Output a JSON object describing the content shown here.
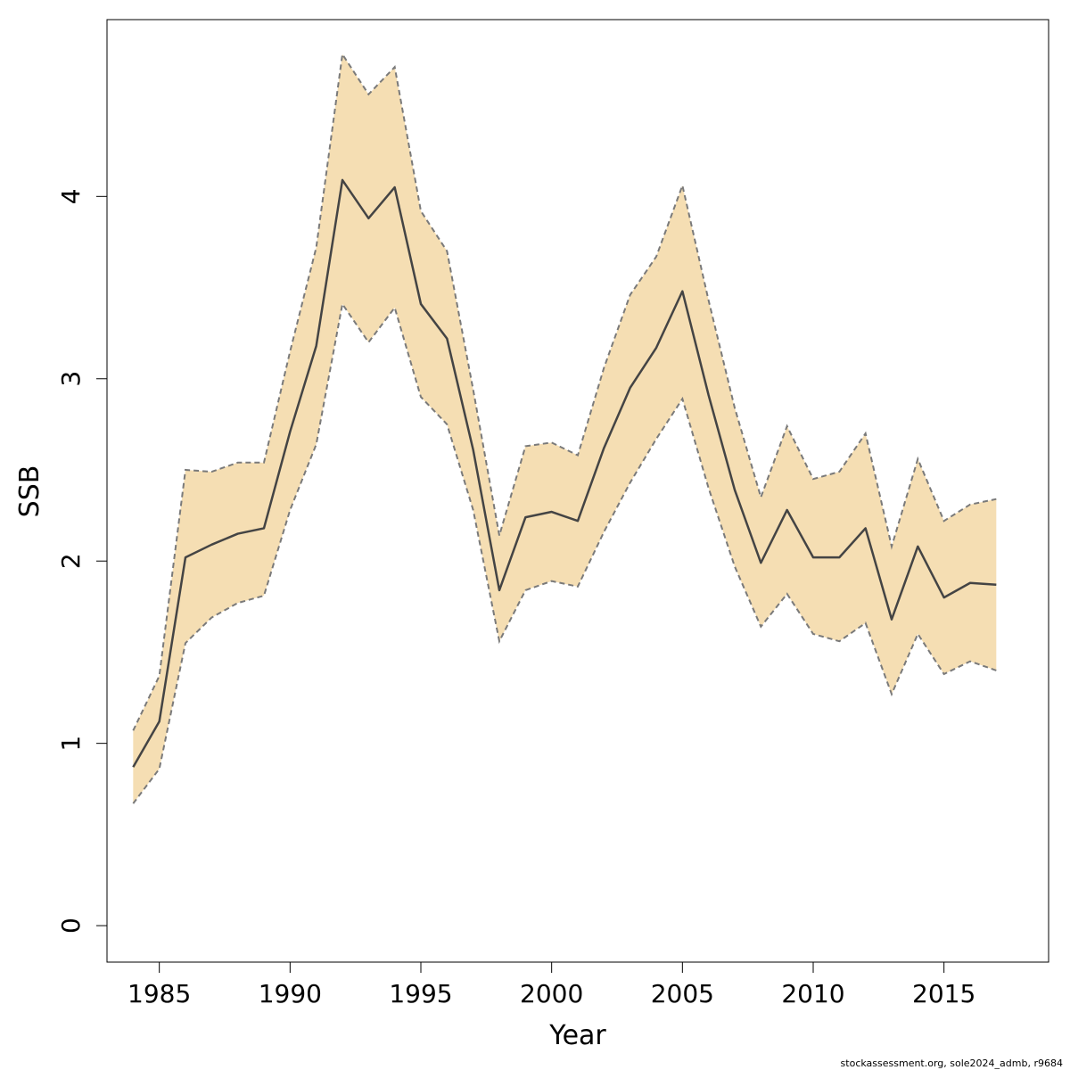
{
  "chart_data": {
    "type": "line",
    "xlabel": "Year",
    "ylabel": "SSB",
    "xlim": [
      1983,
      2019
    ],
    "ylim": [
      -0.2,
      4.97
    ],
    "x_ticks": [
      1985,
      1990,
      1995,
      2000,
      2005,
      2010,
      2015
    ],
    "y_ticks": [
      0,
      1,
      2,
      3,
      4
    ],
    "grid": false,
    "legend": "none",
    "colors": {
      "band_fill": "#F5DEB3",
      "band_edge": "#7a7a7a",
      "line": "#444444",
      "frame": "#000000"
    },
    "x": [
      1984,
      1985,
      1986,
      1987,
      1988,
      1989,
      1990,
      1991,
      1992,
      1993,
      1994,
      1995,
      1996,
      1997,
      1998,
      1999,
      2000,
      2001,
      2002,
      2003,
      2004,
      2005,
      2006,
      2007,
      2008,
      2009,
      2010,
      2011,
      2012,
      2013,
      2014,
      2015,
      2016,
      2017
    ],
    "series": [
      {
        "name": "",
        "role": "estimate",
        "values": [
          0.87,
          1.12,
          2.02,
          2.09,
          2.15,
          2.18,
          2.71,
          3.18,
          4.09,
          3.88,
          4.05,
          3.41,
          3.22,
          2.61,
          1.84,
          2.24,
          2.27,
          2.22,
          2.62,
          2.95,
          3.17,
          3.48,
          2.91,
          2.39,
          1.99,
          2.28,
          2.02,
          2.02,
          2.18,
          1.68,
          2.08,
          1.8,
          1.88,
          1.87
        ]
      },
      {
        "name": "",
        "role": "upper",
        "values": [
          1.07,
          1.37,
          2.5,
          2.49,
          2.54,
          2.54,
          3.15,
          3.72,
          4.78,
          4.56,
          4.71,
          3.92,
          3.7,
          2.94,
          2.14,
          2.63,
          2.65,
          2.58,
          3.06,
          3.46,
          3.67,
          4.06,
          3.43,
          2.84,
          2.35,
          2.74,
          2.45,
          2.49,
          2.7,
          2.08,
          2.56,
          2.22,
          2.31,
          2.34
        ]
      },
      {
        "name": "",
        "role": "lower",
        "values": [
          0.67,
          0.86,
          1.55,
          1.69,
          1.77,
          1.81,
          2.28,
          2.64,
          3.41,
          3.2,
          3.39,
          2.9,
          2.75,
          2.28,
          1.56,
          1.84,
          1.89,
          1.86,
          2.16,
          2.43,
          2.67,
          2.89,
          2.4,
          1.97,
          1.64,
          1.82,
          1.6,
          1.56,
          1.66,
          1.27,
          1.6,
          1.38,
          1.45,
          1.4
        ]
      }
    ],
    "footnote": "stockassessment.org, sole2024_admb, r9684"
  }
}
